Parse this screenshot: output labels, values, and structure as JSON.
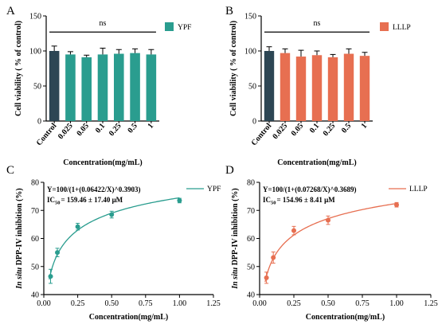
{
  "colors": {
    "control_bar": "#2d4654",
    "ypf": "#2a9d8f",
    "lllp": "#e76f51",
    "axis": "#000000"
  },
  "chart_data": [
    {
      "panel": "A",
      "type": "bar",
      "categories": [
        "Control",
        "0.025",
        "0.05",
        "0.1",
        "0.25",
        "0.5",
        "1"
      ],
      "values": [
        100,
        95,
        91,
        95,
        96,
        97,
        95
      ],
      "errors": [
        7,
        4,
        3,
        9,
        6,
        6,
        7
      ],
      "ylabel": "Cell viability ( % of control)",
      "xlabel": "Concentration(mg/mL)",
      "ylim": [
        0,
        150
      ],
      "yticks": [
        "0",
        "50",
        "100",
        "150"
      ],
      "legend": "YPF",
      "legend_position": "top-right",
      "annotation": "ns"
    },
    {
      "panel": "B",
      "type": "bar",
      "categories": [
        "Control",
        "0.025",
        "0.05",
        "0.1",
        "0.25",
        "0.5",
        "1"
      ],
      "values": [
        100,
        97,
        92,
        94,
        91,
        96,
        93
      ],
      "errors": [
        6,
        6,
        9,
        6,
        4,
        7,
        5
      ],
      "ylabel": "Cell viability ( % of control)",
      "xlabel": "Concentration(mg/mL)",
      "ylim": [
        0,
        150
      ],
      "yticks": [
        "0",
        "50",
        "100",
        "150"
      ],
      "legend": "LLLP",
      "legend_position": "top-right",
      "annotation": "ns"
    },
    {
      "panel": "C",
      "type": "scatter",
      "x": [
        0.05,
        0.1,
        0.25,
        0.5,
        1.0
      ],
      "y": [
        46.5,
        55,
        64.2,
        68.5,
        73.5
      ],
      "errors": [
        2.5,
        1.5,
        1.2,
        1.2,
        0.8
      ],
      "fit": {
        "a": 0.06422,
        "b": 0.3903
      },
      "equation": "Y=100/(1+(0.06422/X)^0.3903)",
      "ic50_prefix": "IC",
      "ic50_sub": "50",
      "ic50_text": "= 159.46 ± 17.40 μM",
      "ylabel_italic": "In situ",
      "ylabel_rest": " DPP-IV inhibition (%)",
      "xlabel": "Concentration(mg/mL)",
      "xlim": [
        0,
        1.25
      ],
      "ylim": [
        40,
        80
      ],
      "xticks": [
        "0.00",
        "0.25",
        "0.50",
        "0.75",
        "1.00",
        "1.25"
      ],
      "yticks": [
        "40",
        "50",
        "60",
        "70",
        "80"
      ],
      "legend": "YPF",
      "legend_position": "top-right"
    },
    {
      "panel": "D",
      "type": "scatter",
      "x": [
        0.05,
        0.1,
        0.25,
        0.5,
        1.0
      ],
      "y": [
        46,
        53.2,
        62.8,
        66.5,
        72
      ],
      "errors": [
        2,
        2,
        1.5,
        1.5,
        0.8
      ],
      "fit": {
        "a": 0.07268,
        "b": 0.3689
      },
      "equation": "Y=100/(1+(0.07268/X)^0.3689)",
      "ic50_prefix": "IC",
      "ic50_sub": "50",
      "ic50_text": "= 154.96 ± 8.41 μM",
      "ylabel_italic": "In situ",
      "ylabel_rest": " DPP-IV inhibition (%)",
      "xlabel": "Concentration(mg/mL)",
      "xlim": [
        0,
        1.25
      ],
      "ylim": [
        40,
        80
      ],
      "xticks": [
        "0.00",
        "0.25",
        "0.50",
        "0.75",
        "1.00",
        "1.25"
      ],
      "yticks": [
        "40",
        "50",
        "60",
        "70",
        "80"
      ],
      "legend": "LLLP",
      "legend_position": "top-right"
    }
  ]
}
